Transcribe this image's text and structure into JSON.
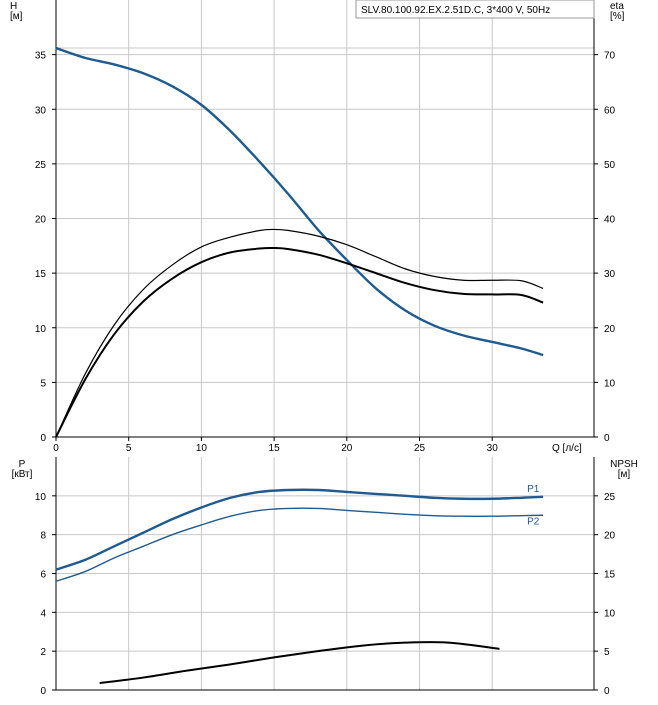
{
  "header": {
    "title": "SLV.80.100.92.EX.2.51D.C, 3*400 V, 50Hz"
  },
  "colors": {
    "blue": "#1f5a91",
    "black": "#000000",
    "grid": "#c8c8c8"
  },
  "chart_data": [
    {
      "type": "line",
      "title": "SLV.80.100.92.EX.2.51D.C, 3*400 V, 50Hz",
      "xlabel": "Q [л/с]",
      "ylabel": "H\n[м]",
      "y2label": "eta\n[%]",
      "xlim": [
        0,
        37
      ],
      "ylim": [
        0,
        40
      ],
      "y2lim": [
        0,
        80
      ],
      "xticks": [
        0,
        5,
        10,
        15,
        20,
        25,
        30
      ],
      "yticks": [
        0,
        5,
        10,
        15,
        20,
        25,
        30,
        35
      ],
      "y2ticks": [
        0,
        10,
        20,
        30,
        40,
        50,
        60,
        70
      ],
      "grid": true,
      "series": [
        {
          "id": "H",
          "axis": "left",
          "color": "#1f5a91",
          "x": [
            0,
            2,
            4,
            6,
            8,
            10,
            12,
            14,
            16,
            18,
            20,
            22,
            24,
            26,
            28,
            30,
            32,
            33.5
          ],
          "y": [
            35.6,
            34.7,
            34.1,
            33.3,
            32.1,
            30.4,
            28.0,
            25.2,
            22.2,
            19.0,
            16.2,
            13.6,
            11.6,
            10.2,
            9.3,
            8.7,
            8.1,
            7.5
          ]
        },
        {
          "id": "eta-pump",
          "axis": "right",
          "color": "#000000",
          "x": [
            0,
            2,
            4,
            6,
            8,
            10,
            12,
            14,
            15,
            16,
            18,
            20,
            22,
            24,
            26,
            28,
            30,
            32,
            33.5
          ],
          "y": [
            0,
            11.5,
            20.5,
            27.0,
            31.5,
            34.8,
            36.6,
            37.8,
            38.0,
            37.8,
            36.8,
            35.2,
            33.0,
            30.8,
            29.4,
            28.7,
            28.7,
            28.6,
            27.2
          ]
        },
        {
          "id": "eta-total",
          "axis": "right",
          "color": "#000000",
          "x": [
            0,
            2,
            4,
            6,
            8,
            10,
            12,
            14,
            15,
            16,
            18,
            20,
            22,
            24,
            26,
            28,
            30,
            32,
            33.5
          ],
          "y": [
            0,
            10.5,
            18.8,
            24.8,
            29.0,
            32.0,
            33.8,
            34.5,
            34.6,
            34.4,
            33.4,
            31.8,
            30.0,
            28.2,
            26.9,
            26.2,
            26.1,
            26.0,
            24.6
          ]
        }
      ]
    },
    {
      "type": "line",
      "xlabel": "",
      "ylabel": "P\n[кВт]",
      "y2label": "NPSH\n[м]",
      "xlim": [
        0,
        37
      ],
      "ylim": [
        0,
        12
      ],
      "y2lim": [
        0,
        30
      ],
      "yticks": [
        0,
        2,
        4,
        6,
        8,
        10
      ],
      "y2ticks": [
        0,
        5,
        10,
        15,
        20,
        25
      ],
      "grid": true,
      "series": [
        {
          "name": "P1",
          "axis": "left",
          "color": "#1f5a91",
          "x": [
            0,
            2,
            4,
            6,
            8,
            10,
            12,
            14,
            16,
            18,
            20,
            22,
            24,
            26,
            28,
            30,
            32,
            33.5
          ],
          "y": [
            6.2,
            6.7,
            7.4,
            8.1,
            8.8,
            9.4,
            9.9,
            10.2,
            10.3,
            10.3,
            10.2,
            10.1,
            10.0,
            9.9,
            9.85,
            9.85,
            9.9,
            9.95
          ]
        },
        {
          "name": "P2",
          "axis": "left",
          "color": "#1f5a91",
          "x": [
            0,
            2,
            4,
            6,
            8,
            10,
            12,
            14,
            16,
            18,
            20,
            22,
            24,
            26,
            28,
            30,
            32,
            33.5
          ],
          "y": [
            5.6,
            6.1,
            6.8,
            7.4,
            8.0,
            8.5,
            8.95,
            9.25,
            9.35,
            9.35,
            9.25,
            9.15,
            9.05,
            8.98,
            8.95,
            8.95,
            8.98,
            9.0
          ]
        },
        {
          "id": "NPSH",
          "axis": "right",
          "color": "#000000",
          "x": [
            3,
            6,
            9,
            12,
            15,
            18,
            21,
            24,
            27,
            30.5
          ],
          "y": [
            0.9,
            1.6,
            2.5,
            3.3,
            4.2,
            5.0,
            5.7,
            6.1,
            6.1,
            5.3
          ]
        }
      ]
    }
  ]
}
